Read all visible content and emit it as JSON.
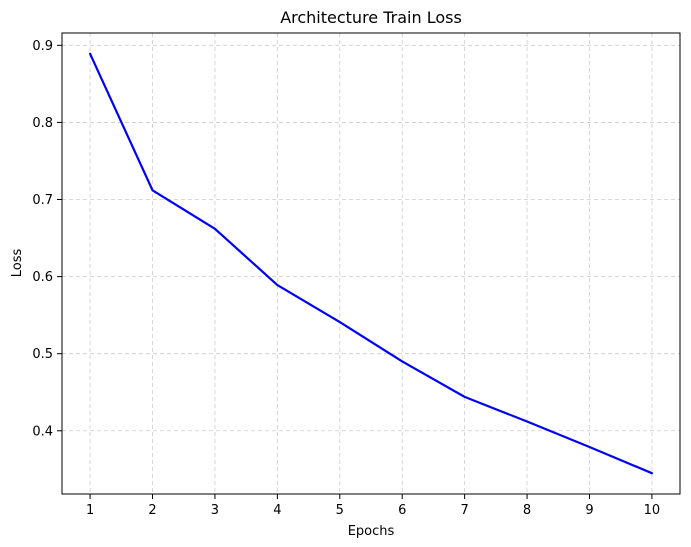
{
  "chart_data": {
    "type": "line",
    "title": "Architecture Train Loss",
    "xlabel": "Epochs",
    "ylabel": "Loss",
    "x": [
      1,
      2,
      3,
      4,
      5,
      6,
      7,
      8,
      9,
      10
    ],
    "series": [
      {
        "values": [
          0.889,
          0.712,
          0.662,
          0.589,
          0.541,
          0.49,
          0.444,
          0.412,
          0.379,
          0.345
        ],
        "color": "#0000ff"
      }
    ],
    "xticks": [
      "1",
      "2",
      "3",
      "4",
      "5",
      "6",
      "7",
      "8",
      "9",
      "10"
    ],
    "yticks": [
      "0.4",
      "0.5",
      "0.6",
      "0.7",
      "0.8",
      "0.9"
    ],
    "xlim": [
      0.55,
      10.45
    ],
    "ylim": [
      0.318,
      0.916
    ],
    "grid": true,
    "grid_style": "dashed",
    "grid_color": "#cccccc"
  }
}
